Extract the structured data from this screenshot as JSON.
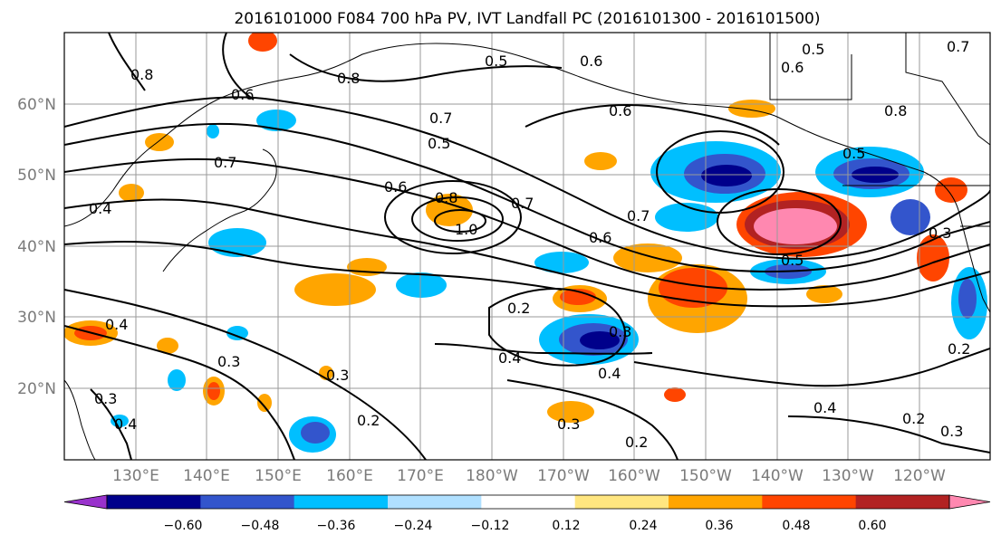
{
  "title": "2016101000 F084 700 hPa PV, IVT Landfall PC (2016101300 - 2016101500)",
  "map": {
    "lat_labels": [
      "60°N",
      "50°N",
      "40°N",
      "30°N",
      "20°N"
    ],
    "lon_labels": [
      "130°E",
      "140°E",
      "150°E",
      "160°E",
      "170°E",
      "180°W",
      "170°W",
      "160°W",
      "150°W",
      "140°W",
      "130°W",
      "120°W"
    ],
    "contour_labels": [
      "0.8",
      "0.8",
      "0.6",
      "0.5",
      "0.6",
      "0.6",
      "0.5",
      "0.7",
      "0.5",
      "0.6",
      "0.8",
      "0.7",
      "1.0",
      "0.7",
      "0.6",
      "0.7",
      "0.5",
      "0.6",
      "0.4",
      "0.4",
      "0.2",
      "0.3",
      "0.4",
      "0.4",
      "0.3",
      "0.3",
      "0.3",
      "0.2",
      "0.3",
      "0.4",
      "0.2",
      "0.3",
      "0.2",
      "0.4",
      "0.5",
      "0.7",
      "0.8",
      "0.3",
      "0.2"
    ]
  },
  "colorbar": {
    "tick_labels": [
      "−0.60",
      "−0.48",
      "−0.36",
      "−0.24",
      "−0.12",
      "0.12",
      "0.24",
      "0.36",
      "0.48",
      "0.60"
    ],
    "colors": [
      "#9932CC",
      "#00008B",
      "#3355CC",
      "#00BFFF",
      "#B0E0FF",
      "#FFFFFF",
      "#FFE680",
      "#FFA500",
      "#FF4500",
      "#B22222",
      "#FF88B0"
    ]
  }
}
